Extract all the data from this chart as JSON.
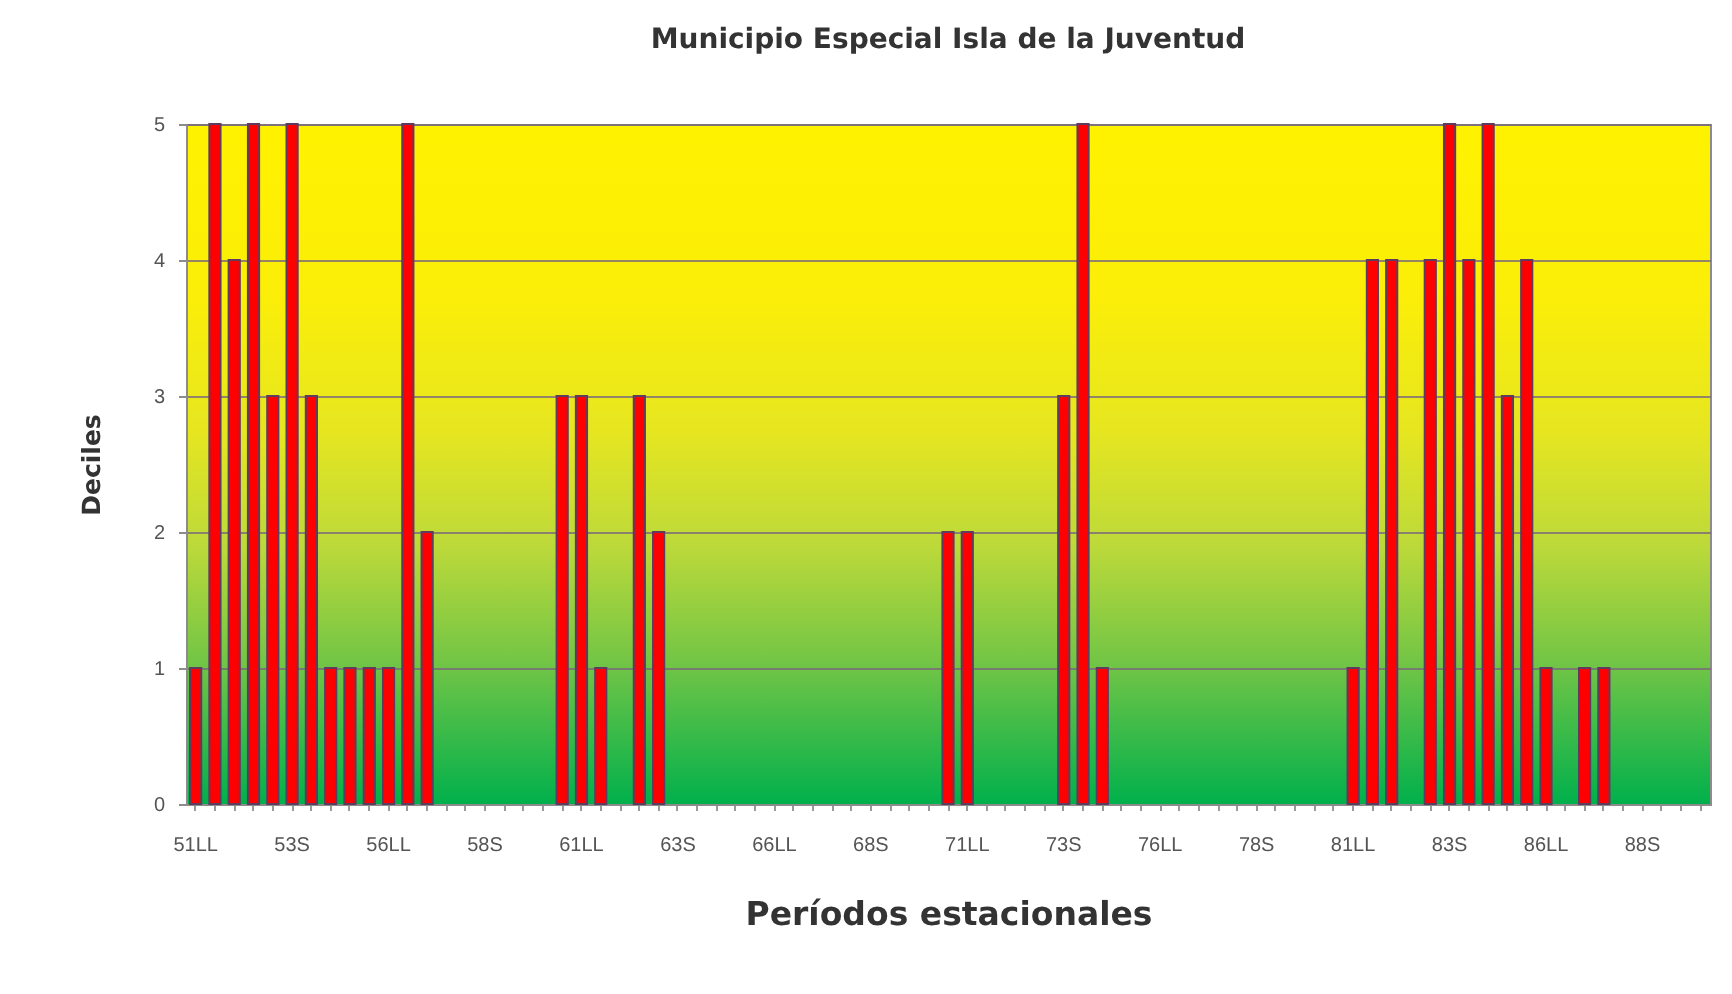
{
  "chart_data": {
    "type": "bar",
    "title": "Municipio Especial Isla de la Juventud",
    "xlabel": "Períodos estacionales",
    "ylabel": "Deciles",
    "categories": [
      "51LL",
      null,
      null,
      null,
      null,
      "53S",
      null,
      null,
      null,
      null,
      "56LL",
      null,
      null,
      null,
      null,
      "58S",
      null,
      null,
      null,
      null,
      "61LL",
      null,
      null,
      null,
      null,
      "63S",
      null,
      null,
      null,
      null,
      "66LL",
      null,
      null,
      null,
      null,
      "68S",
      null,
      null,
      null,
      null,
      "71LL",
      null,
      null,
      null,
      null,
      "73S",
      null,
      null,
      null,
      null,
      "76LL",
      null,
      null,
      null,
      null,
      "78S",
      null,
      null,
      null,
      null,
      "81LL",
      null,
      null,
      null,
      null,
      "83S",
      null,
      null,
      null,
      null,
      "86LL",
      null,
      null,
      null,
      null,
      "88S",
      null,
      null,
      null
    ],
    "values": [
      1,
      5,
      4,
      5,
      3,
      5,
      3,
      1,
      1,
      1,
      1,
      5,
      2,
      0,
      0,
      0,
      0,
      0,
      0,
      3,
      3,
      1,
      0,
      3,
      2,
      0,
      0,
      0,
      0,
      0,
      0,
      0,
      0,
      0,
      0,
      0,
      0,
      0,
      0,
      2,
      2,
      0,
      0,
      0,
      0,
      3,
      5,
      1,
      0,
      0,
      0,
      0,
      0,
      0,
      0,
      0,
      0,
      0,
      0,
      0,
      1,
      4,
      4,
      0,
      4,
      5,
      4,
      5,
      3,
      4,
      1,
      0,
      1,
      1,
      0,
      0,
      0,
      0,
      0
    ],
    "color": "#ff0000",
    "ylim": [
      0,
      5
    ],
    "yticks": [
      0,
      1,
      2,
      3,
      4,
      5
    ],
    "grid": "y"
  }
}
